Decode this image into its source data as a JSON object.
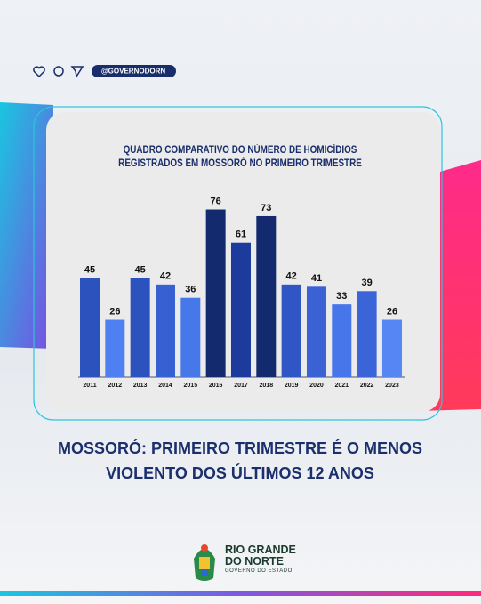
{
  "header": {
    "handle": "@GOVERNODORN"
  },
  "chart_data": {
    "type": "bar",
    "title": "QUADRO COMPARATIVO DO NÚMERO DE HOMICÍDIOS REGISTRADOS EM MOSSORÓ NO PRIMEIRO TRIMESTRE",
    "categories": [
      "2011",
      "2012",
      "2013",
      "2014",
      "2015",
      "2016",
      "2017",
      "2018",
      "2019",
      "2020",
      "2021",
      "2022",
      "2023"
    ],
    "values": [
      45,
      26,
      45,
      42,
      36,
      76,
      61,
      73,
      42,
      41,
      33,
      39,
      26
    ],
    "colors": [
      "#2c52bd",
      "#4f80f2",
      "#2c52bd",
      "#3760d2",
      "#4778ea",
      "#132a6e",
      "#1d3b9c",
      "#132a6e",
      "#2f56c4",
      "#3a62d4",
      "#4676ea",
      "#3b64d8",
      "#5586f4"
    ]
  },
  "headline": "MOSSORÓ: PRIMEIRO TRIMESTRE É O MENOS VIOLENTO DOS ÚLTIMOS 12 ANOS",
  "footer": {
    "logo_title": "RIO GRANDE DO NORTE",
    "logo_subtitle": "GOVERNO DO ESTADO"
  }
}
